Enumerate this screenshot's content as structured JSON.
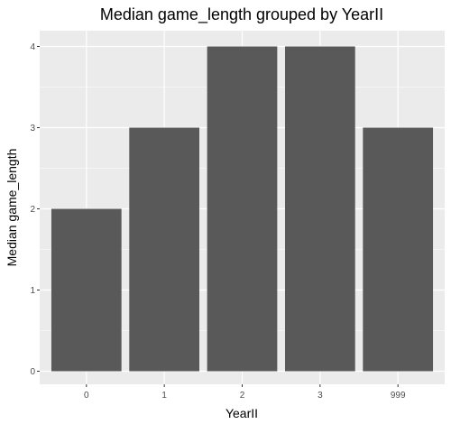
{
  "chart_data": {
    "type": "bar",
    "title": "Median game_length grouped by YearII",
    "xlabel": "YearII",
    "ylabel": "Median game_length",
    "categories": [
      "0",
      "1",
      "2",
      "3",
      "999"
    ],
    "values": [
      2,
      3,
      4,
      4,
      3
    ],
    "ylim": [
      0,
      4.2
    ],
    "yticks": [
      "0",
      "1",
      "2",
      "3",
      "4"
    ],
    "grid": true,
    "legend": "none",
    "colors": {
      "bar": "#595959",
      "panel": "#ebebeb",
      "grid": "#ffffff",
      "tick_text": "#4d4d4d"
    }
  }
}
